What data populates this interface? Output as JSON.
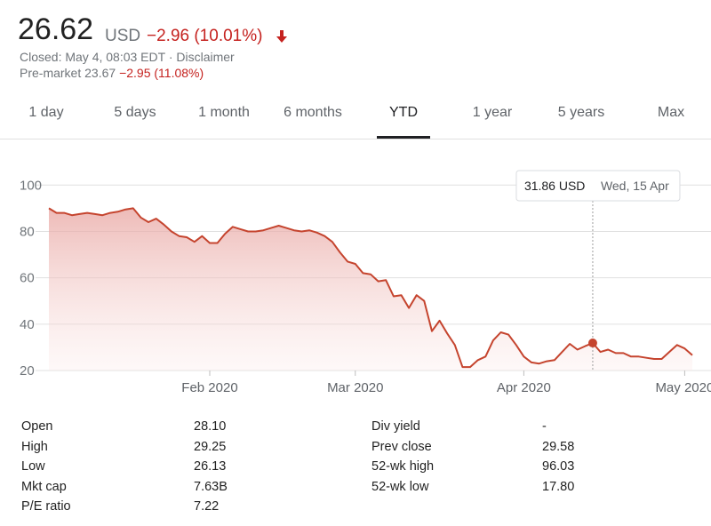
{
  "header": {
    "price": "26.62",
    "currency": "USD",
    "change": "−2.96 (10.01%)",
    "closed": "Closed: May 4, 08:03 EDT · ",
    "disclaimer": "Disclaimer",
    "premarket": "Pre-market 23.67",
    "premarket_change": "−2.95 (11.08%)"
  },
  "tabs": [
    "1 day",
    "5 days",
    "1 month",
    "6 months",
    "YTD",
    "1 year",
    "5 years",
    "Max"
  ],
  "chart_data": {
    "type": "line",
    "categories": [
      null,
      null,
      null,
      null,
      null,
      null,
      null,
      null,
      null,
      null,
      null,
      null,
      null,
      null,
      null,
      null,
      null,
      null,
      null,
      null,
      null,
      "Feb 2020",
      null,
      null,
      null,
      null,
      null,
      null,
      null,
      null,
      null,
      null,
      null,
      null,
      null,
      null,
      null,
      null,
      null,
      null,
      "Mar 2020",
      null,
      null,
      null,
      null,
      null,
      null,
      null,
      null,
      null,
      null,
      null,
      null,
      null,
      null,
      null,
      null,
      null,
      null,
      null,
      null,
      null,
      "Apr 2020",
      null,
      null,
      null,
      null,
      null,
      null,
      null,
      null,
      null,
      null,
      null,
      null,
      null,
      null,
      null,
      null,
      null,
      null,
      null,
      null,
      "May 2020",
      null
    ],
    "series": [
      {
        "color": "#c5442e",
        "values": [
          90,
          88,
          88,
          87,
          87.5,
          88,
          87.5,
          87,
          88,
          88.5,
          89.5,
          90,
          86,
          84,
          85.5,
          83,
          80,
          78,
          77.5,
          75.5,
          78,
          75,
          75,
          79,
          82,
          81,
          80,
          80,
          80.5,
          81.5,
          82.5,
          81.5,
          80.5,
          80,
          80.5,
          79.5,
          78,
          75.5,
          71,
          67,
          66,
          62,
          61.5,
          58.5,
          59,
          52,
          52.5,
          47,
          52.5,
          50,
          37,
          41.5,
          36,
          31,
          21.5,
          21.5,
          24.5,
          26,
          33,
          36.5,
          35.5,
          31,
          26,
          23.5,
          23,
          24,
          24.5,
          28,
          31.5,
          29,
          30.5,
          31.86,
          28,
          29,
          27.5,
          27.5,
          26,
          26,
          25.5,
          25,
          25,
          28,
          31,
          29.5,
          26.62
        ]
      }
    ],
    "ylim": [
      20,
      112
    ],
    "yticks": [
      20,
      40,
      60,
      80,
      100
    ],
    "grid": true,
    "tooltip": {
      "label": "31.86 USD",
      "date": "Wed, 15 Apr"
    }
  },
  "stats": {
    "left": [
      [
        "Open",
        "28.10"
      ],
      [
        "High",
        "29.25"
      ],
      [
        "Low",
        "26.13"
      ],
      [
        "Mkt cap",
        "7.63B"
      ],
      [
        "P/E ratio",
        "7.22"
      ]
    ],
    "right": [
      [
        "Div yield",
        "-"
      ],
      [
        "Prev close",
        "29.58"
      ],
      [
        "52-wk high",
        "96.03"
      ],
      [
        "52-wk low",
        "17.80"
      ]
    ]
  }
}
